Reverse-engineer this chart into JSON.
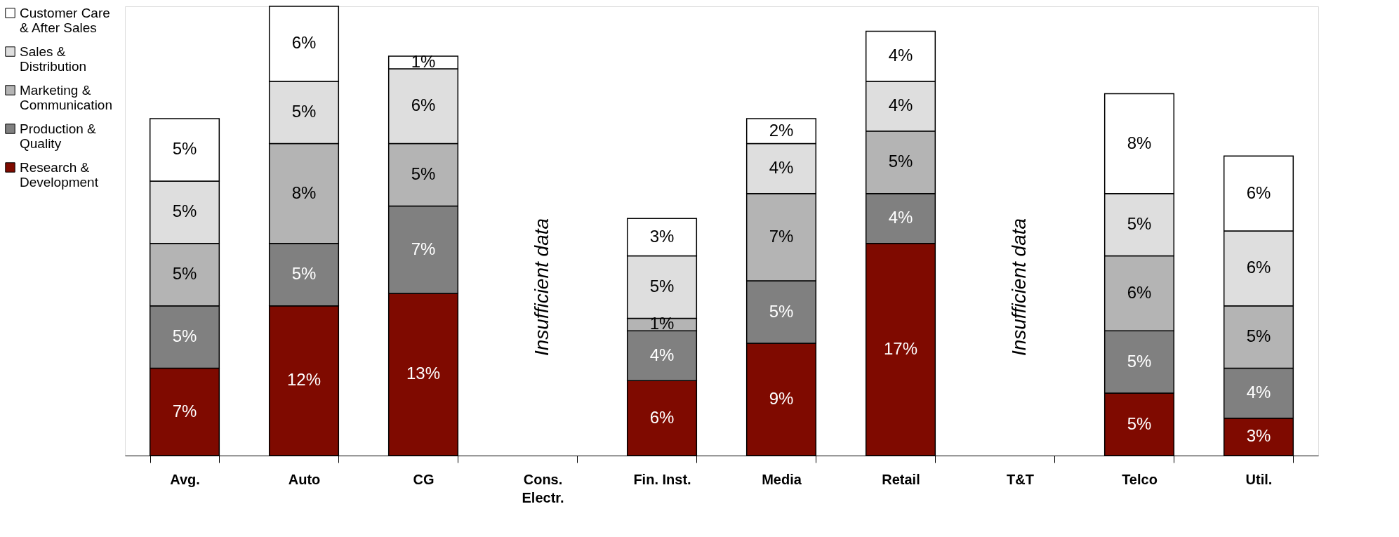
{
  "chart_data": {
    "type": "bar",
    "stacked": true,
    "legend": "left",
    "grid": false,
    "categories": [
      "Avg.",
      "Auto",
      "CG",
      "Cons.\nElectr.",
      "Fin. Inst.",
      "Media",
      "Retail",
      "T&T",
      "Telco",
      "Util."
    ],
    "series": [
      {
        "name": "Research &\nDevelopment",
        "color": "#7f0a00",
        "values": [
          7,
          12,
          13,
          null,
          6,
          9,
          17,
          null,
          5,
          3
        ],
        "value_labels": [
          "7%",
          "12%",
          "13%",
          null,
          "6%",
          "9%",
          "17%",
          null,
          "5%",
          "3%"
        ]
      },
      {
        "name": "Production &\nQuality",
        "color": "#808080",
        "values": [
          5,
          5,
          7,
          null,
          4,
          5,
          4,
          null,
          5,
          4
        ],
        "value_labels": [
          "5%",
          "5%",
          "7%",
          null,
          "4%",
          "5%",
          "4%",
          null,
          "5%",
          "4%"
        ]
      },
      {
        "name": "Marketing &\nCommunication",
        "color": "#b4b4b4",
        "values": [
          5,
          8,
          5,
          null,
          1,
          7,
          5,
          null,
          6,
          5
        ],
        "value_labels": [
          "5%",
          "8%",
          "5%",
          null,
          "1%",
          "7%",
          "5%",
          null,
          "6%",
          "5%"
        ]
      },
      {
        "name": "Sales &\nDistribution",
        "color": "#dedede",
        "values": [
          5,
          5,
          6,
          null,
          5,
          4,
          4,
          null,
          5,
          6
        ],
        "value_labels": [
          "5%",
          "5%",
          "6%",
          null,
          "5%",
          "4%",
          "4%",
          null,
          "5%",
          "6%"
        ]
      },
      {
        "name": "Customer Care\n& After Sales",
        "color": "#ffffff",
        "values": [
          5,
          6,
          1,
          null,
          3,
          2,
          4,
          null,
          8,
          6
        ],
        "value_labels": [
          "5%",
          "6%",
          "1%",
          null,
          "3%",
          "2%",
          "4%",
          null,
          "8%",
          "6%"
        ]
      }
    ],
    "annotations": [
      "Insufficient data",
      "Insufficient data"
    ]
  }
}
